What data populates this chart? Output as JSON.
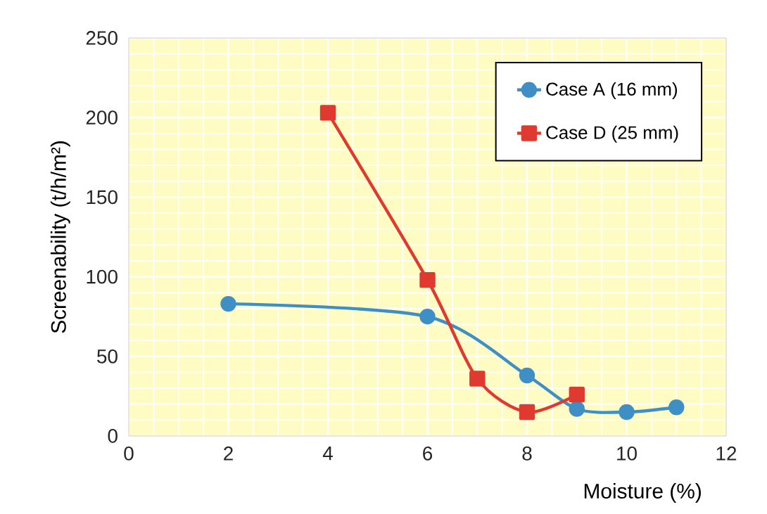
{
  "chart_data": {
    "type": "line",
    "xlabel": "Moisture (%)",
    "ylabel": "Screenability (t/h/m²)",
    "xlim": [
      0,
      12
    ],
    "xticks": [
      0,
      2,
      4,
      6,
      8,
      10,
      12
    ],
    "ylim": [
      0,
      250
    ],
    "yticks": [
      0,
      50,
      100,
      150,
      200,
      250
    ],
    "grid": true,
    "legend": "top right",
    "series": [
      {
        "name": "Case A (16 mm)",
        "color": "#3d8fc6",
        "marker": "circle",
        "x": [
          2,
          6,
          8,
          9,
          10,
          11
        ],
        "values": [
          83,
          75,
          38,
          17,
          15,
          18
        ]
      },
      {
        "name": "Case D (25 mm)",
        "color": "#e03a30",
        "marker": "square",
        "x": [
          4,
          6,
          7,
          8,
          9
        ],
        "values": [
          203,
          98,
          36,
          15,
          26
        ]
      }
    ]
  }
}
